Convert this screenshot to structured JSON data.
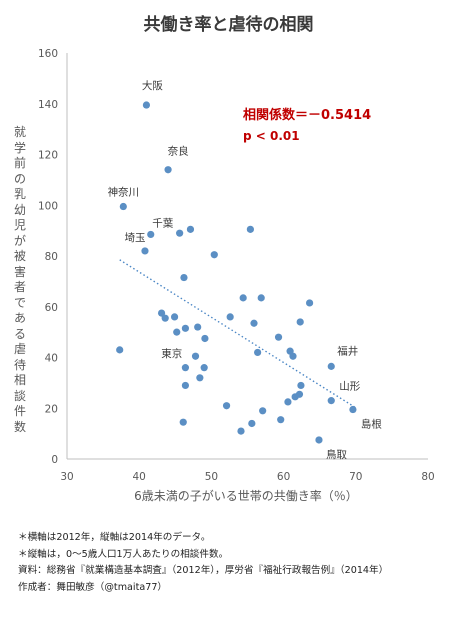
{
  "chart_data": {
    "type": "scatter",
    "title": "共働き率と虐待の相関",
    "xlabel": "6歳未満の子がいる世帯の共働き率（％）",
    "ylabel": "就学前の乳幼児が被害者である虐待相談件数",
    "xlim": [
      30,
      80
    ],
    "ylim": [
      0,
      160
    ],
    "xticks": [
      30,
      40,
      50,
      60,
      70,
      80
    ],
    "yticks": [
      0,
      20,
      40,
      60,
      80,
      100,
      120,
      140,
      160
    ],
    "grid": false,
    "legend": "none",
    "point_color": "#5b8fc4",
    "trendline": {
      "type": "linear",
      "style": "dotted",
      "color": "#4a86c5",
      "x": [
        37.3,
        70.1
      ],
      "y": [
        78.5,
        20.0
      ]
    },
    "annotation": {
      "correlation": "相関係数＝－0.5414",
      "pvalue": "p < 0.01",
      "color": "#c00000"
    },
    "points": [
      {
        "x": 41.0,
        "y": 139.5,
        "label": "大阪"
      },
      {
        "x": 44.0,
        "y": 114.0,
        "label": "奈良"
      },
      {
        "x": 37.8,
        "y": 99.5,
        "label": "神奈川"
      },
      {
        "x": 41.6,
        "y": 88.5,
        "label": "千葉"
      },
      {
        "x": 40.8,
        "y": 82.0,
        "label": "埼玉"
      },
      {
        "x": 45.6,
        "y": 89.0
      },
      {
        "x": 47.1,
        "y": 90.5
      },
      {
        "x": 55.4,
        "y": 90.5
      },
      {
        "x": 50.4,
        "y": 80.5
      },
      {
        "x": 46.2,
        "y": 71.5
      },
      {
        "x": 54.4,
        "y": 63.5
      },
      {
        "x": 56.9,
        "y": 63.5
      },
      {
        "x": 63.6,
        "y": 61.5
      },
      {
        "x": 43.1,
        "y": 57.5
      },
      {
        "x": 43.6,
        "y": 55.5
      },
      {
        "x": 44.9,
        "y": 56.0
      },
      {
        "x": 46.4,
        "y": 51.5
      },
      {
        "x": 48.1,
        "y": 52.0
      },
      {
        "x": 52.6,
        "y": 56.0
      },
      {
        "x": 62.3,
        "y": 54.0
      },
      {
        "x": 45.2,
        "y": 50.0
      },
      {
        "x": 49.1,
        "y": 47.5
      },
      {
        "x": 55.9,
        "y": 53.5
      },
      {
        "x": 59.3,
        "y": 48.0
      },
      {
        "x": 37.3,
        "y": 43.0,
        "label": "東京"
      },
      {
        "x": 56.4,
        "y": 42.0
      },
      {
        "x": 60.9,
        "y": 42.5
      },
      {
        "x": 61.3,
        "y": 40.5
      },
      {
        "x": 47.8,
        "y": 40.5
      },
      {
        "x": 46.4,
        "y": 36.0
      },
      {
        "x": 49.0,
        "y": 36.0
      },
      {
        "x": 48.4,
        "y": 32.0
      },
      {
        "x": 46.4,
        "y": 29.0
      },
      {
        "x": 62.4,
        "y": 29.0
      },
      {
        "x": 66.6,
        "y": 36.5,
        "label": "福井"
      },
      {
        "x": 66.6,
        "y": 23.0,
        "label": "山形"
      },
      {
        "x": 61.6,
        "y": 24.5
      },
      {
        "x": 62.2,
        "y": 25.5
      },
      {
        "x": 60.6,
        "y": 22.5
      },
      {
        "x": 69.6,
        "y": 19.5,
        "label": "島根"
      },
      {
        "x": 52.1,
        "y": 21.0
      },
      {
        "x": 57.1,
        "y": 19.0
      },
      {
        "x": 59.6,
        "y": 15.5
      },
      {
        "x": 55.6,
        "y": 14.0
      },
      {
        "x": 46.1,
        "y": 14.5
      },
      {
        "x": 54.1,
        "y": 11.0
      },
      {
        "x": 64.9,
        "y": 7.5,
        "label": "鳥取"
      }
    ]
  },
  "notes": [
    "＊横軸は2012年，縦軸は2014年のデータ。",
    "＊縦軸は，0～5歳人口1万人あたりの相談件数。",
    "資料：総務省『就業構造基本調査』（2012年），厚労省『福祉行政報告例』（2014年）",
    "作成者：舞田敏彦（@tmaita77）"
  ]
}
